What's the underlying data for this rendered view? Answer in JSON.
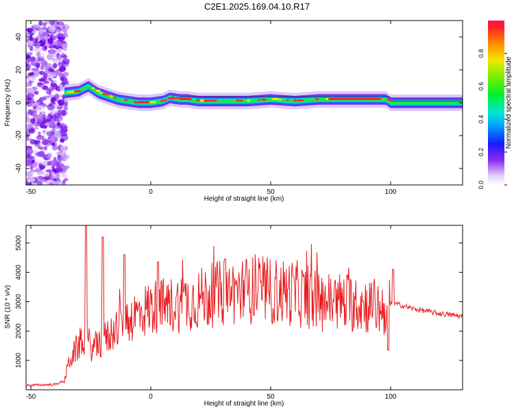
{
  "title": "C2E1.2025.169.04.10.R17",
  "chart_data": [
    {
      "type": "heatmap",
      "xlabel": "Height of straight line (km)",
      "ylabel": "Frequency (Hz)",
      "xlim": [
        -52,
        130
      ],
      "ylim": [
        -50,
        50
      ],
      "xticks": [
        -50,
        0,
        50,
        100
      ],
      "yticks": [
        -40,
        -20,
        0,
        20,
        40
      ],
      "colorbar": {
        "label": "Normalized spectral amplitude",
        "range": [
          0,
          1
        ],
        "ticks": [
          "0.0",
          "0.2",
          "0.4",
          "0.6",
          "0.8"
        ]
      },
      "ridge": {
        "x": [
          -36,
          -30,
          -26,
          -22,
          -18,
          -14,
          -10,
          -5,
          0,
          5,
          8,
          12,
          15,
          20,
          30,
          40,
          50,
          60,
          70,
          80,
          90,
          98,
          100,
          105,
          115,
          130
        ],
        "frequency": [
          6,
          7,
          10,
          6,
          4,
          2,
          1,
          0,
          0,
          1,
          3,
          2,
          2,
          1,
          1,
          1,
          2,
          1,
          2,
          2,
          2,
          2,
          0,
          0,
          0,
          0
        ]
      },
      "noise_region_x": [
        -52,
        -35
      ]
    },
    {
      "type": "line",
      "xlabel": "Height of straight line (km)",
      "ylabel": "SNR (10 * v/v)",
      "xlim": [
        -52,
        130
      ],
      "ylim": [
        0,
        5600
      ],
      "xticks": [
        -50,
        0,
        50,
        100
      ],
      "yticks": [
        1000,
        2000,
        3000,
        4000,
        5000
      ],
      "color": "#e8191c",
      "envelope": {
        "x": [
          -52,
          -40,
          -36,
          -34,
          -30,
          -28,
          -24,
          -21,
          -18,
          -12,
          -5,
          0,
          10,
          20,
          30,
          40,
          50,
          60,
          70,
          80,
          90,
          98,
          101,
          110,
          120,
          130
        ],
        "y": [
          150,
          180,
          300,
          1000,
          1500,
          1800,
          1400,
          1600,
          1800,
          2300,
          2600,
          2800,
          2900,
          3100,
          3300,
          3400,
          3350,
          3300,
          3000,
          3000,
          2900,
          2750,
          2950,
          2750,
          2600,
          2500
        ]
      },
      "peaks": [
        {
          "x": -27,
          "y": 5600
        },
        {
          "x": -20,
          "y": 5200
        },
        {
          "x": -11,
          "y": 4600
        },
        {
          "x": 3,
          "y": 4350
        },
        {
          "x": 31,
          "y": 4450
        },
        {
          "x": 101,
          "y": 4100
        },
        {
          "x": 99,
          "y": 1350
        }
      ]
    }
  ]
}
